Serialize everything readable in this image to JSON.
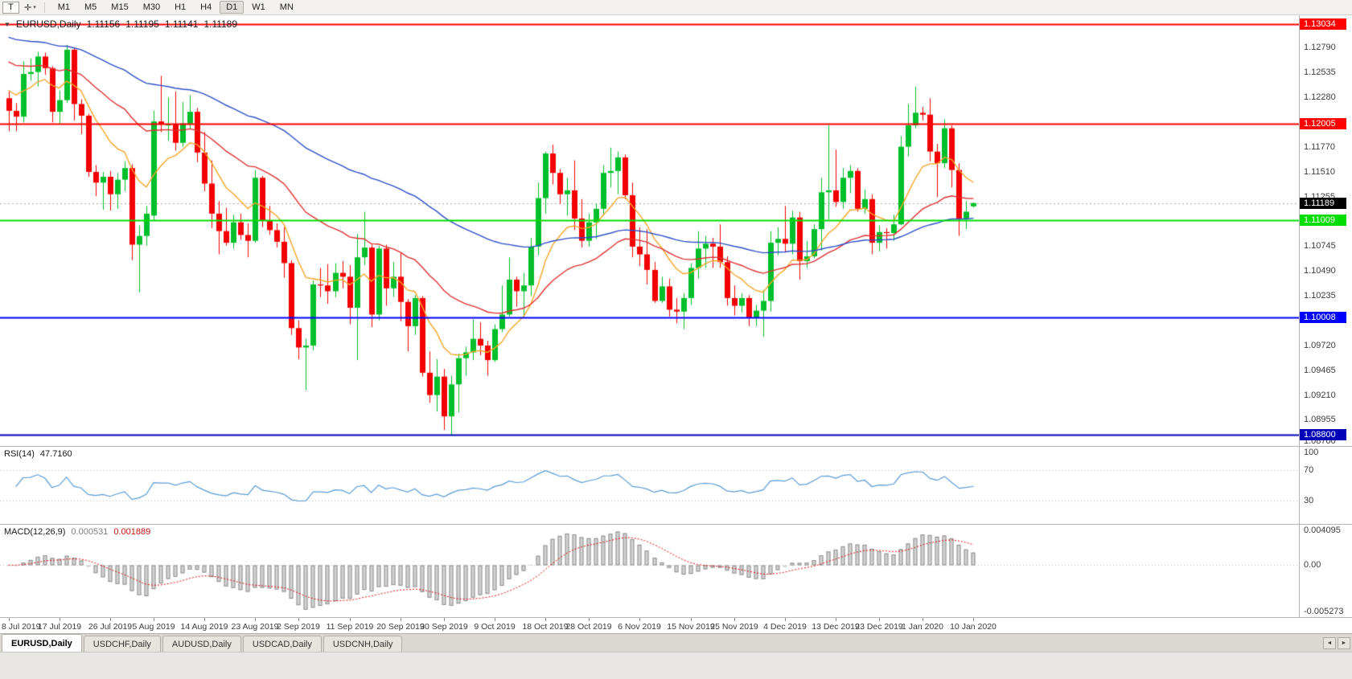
{
  "toolbar": {
    "tool_button_label": "T",
    "crosshair_icon": "✛",
    "dropdown_caret": "▾",
    "timeframes": [
      "M1",
      "M5",
      "M15",
      "M30",
      "H1",
      "H4",
      "D1",
      "W1",
      "MN"
    ],
    "active_timeframe": "D1"
  },
  "header": {
    "marker": "▼",
    "symbol": "EURUSD,Daily",
    "open": "1.11156",
    "high": "1.11195",
    "low": "1.11141",
    "close": "1.11189"
  },
  "chart_data": {
    "type": "candlestick",
    "symbol": "EURUSD",
    "timeframe": "Daily",
    "y_max": 1.13125,
    "y_min": 1.08685,
    "colors": {
      "up": "#00bf2a",
      "down": "#f40000"
    },
    "candles": [
      [
        1.1227,
        1.1234,
        1.1193,
        1.1214
      ],
      [
        1.1214,
        1.1222,
        1.1193,
        1.1208
      ],
      [
        1.1208,
        1.1265,
        1.1202,
        1.1252
      ],
      [
        1.1252,
        1.1268,
        1.1245,
        1.1254
      ],
      [
        1.1254,
        1.1275,
        1.1239,
        1.127
      ],
      [
        1.127,
        1.1274,
        1.1251,
        1.1258
      ],
      [
        1.1258,
        1.126,
        1.1202,
        1.1213
      ],
      [
        1.1213,
        1.1235,
        1.12,
        1.1225
      ],
      [
        1.1225,
        1.1282,
        1.1222,
        1.1277
      ],
      [
        1.1277,
        1.1279,
        1.1204,
        1.1221
      ],
      [
        1.1221,
        1.1226,
        1.119,
        1.1209
      ],
      [
        1.1209,
        1.1211,
        1.1146,
        1.1151
      ],
      [
        1.1151,
        1.1158,
        1.1126,
        1.114
      ],
      [
        1.114,
        1.1151,
        1.1112,
        1.1146
      ],
      [
        1.1146,
        1.1152,
        1.1111,
        1.1128
      ],
      [
        1.1128,
        1.115,
        1.1113,
        1.1143
      ],
      [
        1.1143,
        1.1162,
        1.1131,
        1.1155
      ],
      [
        1.1155,
        1.1159,
        1.106,
        1.1076
      ],
      [
        1.1076,
        1.1096,
        1.1027,
        1.1085
      ],
      [
        1.1085,
        1.1116,
        1.1075,
        1.1108
      ],
      [
        1.1106,
        1.1214,
        1.1101,
        1.1203
      ],
      [
        1.1203,
        1.125,
        1.1192,
        1.12
      ],
      [
        1.12,
        1.1228,
        1.1183,
        1.12
      ],
      [
        1.12,
        1.1234,
        1.1173,
        1.1181
      ],
      [
        1.1181,
        1.1223,
        1.1177,
        1.1201
      ],
      [
        1.1201,
        1.123,
        1.1195,
        1.1213
      ],
      [
        1.1213,
        1.1217,
        1.1161,
        1.1171
      ],
      [
        1.1171,
        1.1192,
        1.1131,
        1.1139
      ],
      [
        1.1139,
        1.1163,
        1.1093,
        1.1108
      ],
      [
        1.1108,
        1.1121,
        1.1066,
        1.109
      ],
      [
        1.109,
        1.1114,
        1.1075,
        1.1078
      ],
      [
        1.1078,
        1.1107,
        1.1072,
        1.1099
      ],
      [
        1.1099,
        1.1108,
        1.1081,
        1.1086
      ],
      [
        1.1086,
        1.1098,
        1.1063,
        1.108
      ],
      [
        1.108,
        1.1153,
        1.1078,
        1.1145
      ],
      [
        1.1145,
        1.1147,
        1.1094,
        1.1101
      ],
      [
        1.1101,
        1.1116,
        1.1086,
        1.1091
      ],
      [
        1.1091,
        1.1098,
        1.1073,
        1.1079
      ],
      [
        1.1079,
        1.1094,
        1.1042,
        1.1057
      ],
      [
        1.1057,
        1.106,
        1.0983,
        1.099
      ],
      [
        1.099,
        1.0998,
        1.0958,
        1.097
      ],
      [
        1.097,
        1.0979,
        1.0926,
        1.0972
      ],
      [
        1.0972,
        1.1039,
        1.0967,
        1.1035
      ],
      [
        1.1035,
        1.1052,
        1.1022,
        1.1034
      ],
      [
        1.1034,
        1.1056,
        1.1015,
        1.1028
      ],
      [
        1.1028,
        1.1057,
        1.1022,
        1.1047
      ],
      [
        1.1047,
        1.1059,
        1.1031,
        1.1043
      ],
      [
        1.1043,
        1.1055,
        1.0994,
        1.1011
      ],
      [
        1.1011,
        1.1087,
        1.0957,
        1.1063
      ],
      [
        1.1063,
        1.111,
        1.1055,
        1.1073
      ],
      [
        1.1073,
        1.1076,
        1.0991,
        1.1004
      ],
      [
        1.1004,
        1.1075,
        1.0998,
        1.1072
      ],
      [
        1.1072,
        1.1076,
        1.1013,
        1.1031
      ],
      [
        1.1031,
        1.1058,
        1.1022,
        1.1043
      ],
      [
        1.1043,
        1.1068,
        1.0997,
        1.1017
      ],
      [
        1.1017,
        1.102,
        1.0966,
        1.0992
      ],
      [
        1.0992,
        1.1024,
        1.0983,
        1.1021
      ],
      [
        1.1021,
        1.1023,
        1.094,
        1.0944
      ],
      [
        1.0944,
        1.0966,
        1.0913,
        1.0921
      ],
      [
        1.0921,
        1.0958,
        1.0904,
        1.094
      ],
      [
        1.094,
        1.0948,
        1.0885,
        1.0899
      ],
      [
        1.0899,
        1.0941,
        1.0879,
        1.0932
      ],
      [
        1.0932,
        1.0964,
        1.0903,
        1.0959
      ],
      [
        1.0959,
        1.0971,
        1.0941,
        1.0965
      ],
      [
        1.0965,
        1.0999,
        1.0957,
        1.0979
      ],
      [
        1.0979,
        1.0996,
        1.0962,
        1.0972
      ],
      [
        1.0972,
        1.0977,
        1.0941,
        1.0957
      ],
      [
        1.0957,
        1.0994,
        1.0955,
        1.0989
      ],
      [
        1.0989,
        1.1034,
        1.0986,
        1.1004
      ],
      [
        1.1004,
        1.1063,
        1.1002,
        1.104
      ],
      [
        1.104,
        1.1043,
        1.1012,
        1.1028
      ],
      [
        1.1028,
        1.1047,
        1.1001,
        1.1034
      ],
      [
        1.1034,
        1.1083,
        1.1023,
        1.1074
      ],
      [
        1.1074,
        1.114,
        1.1065,
        1.1124
      ],
      [
        1.1124,
        1.1172,
        1.1108,
        1.117
      ],
      [
        1.117,
        1.1179,
        1.1138,
        1.115
      ],
      [
        1.115,
        1.1154,
        1.1118,
        1.1128
      ],
      [
        1.1128,
        1.1145,
        1.1106,
        1.1132
      ],
      [
        1.1132,
        1.1163,
        1.1091,
        1.1103
      ],
      [
        1.1103,
        1.1123,
        1.1073,
        1.108
      ],
      [
        1.108,
        1.1108,
        1.1074,
        1.1099
      ],
      [
        1.1099,
        1.1118,
        1.1082,
        1.1113
      ],
      [
        1.1113,
        1.1158,
        1.1106,
        1.115
      ],
      [
        1.115,
        1.1176,
        1.1135,
        1.1152
      ],
      [
        1.1152,
        1.1172,
        1.1128,
        1.1166
      ],
      [
        1.1166,
        1.1169,
        1.1123,
        1.1127
      ],
      [
        1.1127,
        1.114,
        1.1063,
        1.1074
      ],
      [
        1.1074,
        1.1094,
        1.1054,
        1.1066
      ],
      [
        1.1066,
        1.1092,
        1.1035,
        1.105
      ],
      [
        1.105,
        1.1058,
        1.1016,
        1.1018
      ],
      [
        1.1018,
        1.1043,
        1.1016,
        1.1033
      ],
      [
        1.1033,
        1.1041,
        1.1002,
        1.1009
      ],
      [
        1.1009,
        1.1021,
        1.0995,
        1.1007
      ],
      [
        1.1007,
        1.1026,
        1.0989,
        1.1021
      ],
      [
        1.1021,
        1.1057,
        1.1014,
        1.1052
      ],
      [
        1.1052,
        1.109,
        1.1041,
        1.1072
      ],
      [
        1.1072,
        1.1085,
        1.1052,
        1.1077
      ],
      [
        1.1077,
        1.1083,
        1.1052,
        1.1074
      ],
      [
        1.1074,
        1.1097,
        1.1052,
        1.1058
      ],
      [
        1.1058,
        1.1064,
        1.1013,
        1.1021
      ],
      [
        1.1021,
        1.1034,
        1.1003,
        1.1013
      ],
      [
        1.1013,
        1.1026,
        1.1006,
        1.1021
      ],
      [
        1.1021,
        1.1024,
        1.0992,
        1.1001
      ],
      [
        1.1001,
        1.1014,
        1.0992,
        1.1008
      ],
      [
        1.1008,
        1.1029,
        1.0981,
        1.1018
      ],
      [
        1.1018,
        1.109,
        1.1007,
        1.1078
      ],
      [
        1.1078,
        1.1094,
        1.1065,
        1.1082
      ],
      [
        1.1082,
        1.1116,
        1.1068,
        1.1077
      ],
      [
        1.1077,
        1.1111,
        1.1066,
        1.1104
      ],
      [
        1.1104,
        1.111,
        1.104,
        1.1059
      ],
      [
        1.1059,
        1.108,
        1.1052,
        1.1064
      ],
      [
        1.1064,
        1.1097,
        1.1062,
        1.1092
      ],
      [
        1.1092,
        1.1145,
        1.107,
        1.113
      ],
      [
        1.113,
        1.1199,
        1.1102,
        1.1132
      ],
      [
        1.1132,
        1.1174,
        1.1115,
        1.112
      ],
      [
        1.112,
        1.1155,
        1.1113,
        1.1145
      ],
      [
        1.1145,
        1.1158,
        1.1129,
        1.1152
      ],
      [
        1.1152,
        1.1155,
        1.111,
        1.1113
      ],
      [
        1.1113,
        1.1133,
        1.1108,
        1.1123
      ],
      [
        1.1123,
        1.1128,
        1.1066,
        1.1078
      ],
      [
        1.1078,
        1.1096,
        1.1069,
        1.1089
      ],
      [
        1.1089,
        1.1093,
        1.1072,
        1.1088
      ],
      [
        1.1088,
        1.1107,
        1.108,
        1.1097
      ],
      [
        1.1097,
        1.1188,
        1.1096,
        1.1177
      ],
      [
        1.1177,
        1.1221,
        1.1167,
        1.1199
      ],
      [
        1.1199,
        1.1239,
        1.1196,
        1.1212
      ],
      [
        1.1212,
        1.1218,
        1.1204,
        1.121
      ],
      [
        1.121,
        1.1227,
        1.1162,
        1.1172
      ],
      [
        1.1172,
        1.118,
        1.1125,
        1.116
      ],
      [
        1.116,
        1.1205,
        1.1155,
        1.1196
      ],
      [
        1.1196,
        1.1199,
        1.1135,
        1.1153
      ],
      [
        1.1153,
        1.116,
        1.1085,
        1.1103
      ],
      [
        1.1103,
        1.1121,
        1.1092,
        1.111
      ],
      [
        1.11156,
        1.11195,
        1.11141,
        1.11189
      ]
    ],
    "tick_indices": [
      0,
      7,
      14,
      20,
      27,
      34,
      40,
      47,
      54,
      60,
      67,
      74,
      80,
      87,
      94,
      100,
      107,
      114,
      120,
      126,
      133
    ],
    "tick_labels": [
      "8 Jul 2019",
      "17 Jul 2019",
      "26 Jul 2019",
      "5 Aug 2019",
      "14 Aug 2019",
      "23 Aug 2019",
      "2 Sep 2019",
      "11 Sep 2019",
      "20 Sep 2019",
      "30 Sep 2019",
      "9 Oct 2019",
      "18 Oct 2019",
      "28 Oct 2019",
      "6 Nov 2019",
      "15 Nov 2019",
      "25 Nov 2019",
      "4 Dec 2019",
      "13 Dec 2019",
      "23 Dec 2019",
      "1 Jan 2020",
      "10 Jan 2020"
    ],
    "price_axis": [
      {
        "value": 1.1279,
        "label": "1.12790"
      },
      {
        "value": 1.12535,
        "label": "1.12535"
      },
      {
        "value": 1.1228,
        "label": "1.12280"
      },
      {
        "value": 1.1177,
        "label": "1.11770"
      },
      {
        "value": 1.1151,
        "label": "1.11510"
      },
      {
        "value": 1.11255,
        "label": "1.11255"
      },
      {
        "value": 1.10745,
        "label": "1.10745"
      },
      {
        "value": 1.1049,
        "label": "1.10490"
      },
      {
        "value": 1.10235,
        "label": "1.10235"
      },
      {
        "value": 1.0972,
        "label": "1.09720"
      },
      {
        "value": 1.09465,
        "label": "1.09465"
      },
      {
        "value": 1.0921,
        "label": "1.09210"
      },
      {
        "value": 1.08955,
        "label": "1.08955"
      },
      {
        "value": 1.087,
        "label": "1.08700"
      }
    ],
    "levels": [
      {
        "price": 1.13034,
        "label": "1.13034",
        "color": "#fe0000",
        "text_color": "#ffffff",
        "width": 2
      },
      {
        "price": 1.12005,
        "label": "1.12005",
        "color": "#fe0000",
        "text_color": "#ffffff",
        "width": 2
      },
      {
        "price": 1.11009,
        "label": "1.11009",
        "color": "#00dd00",
        "text_color": "#ffffff",
        "width": 2
      },
      {
        "price": 1.10008,
        "label": "1.10008",
        "color": "#0000ff",
        "text_color": "#ffffff",
        "width": 2
      },
      {
        "price": 1.088,
        "label": "1.08800",
        "color": "#0000b8",
        "text_color": "#ffffff",
        "width": 2
      }
    ],
    "current_price": {
      "price": 1.11189,
      "label": "1.11189",
      "color": "#000000",
      "text_color": "#ffffff"
    },
    "moving_averages": [
      {
        "name": "ma-fast",
        "period": 10,
        "seed": 1.124,
        "color": "#f4a62a"
      },
      {
        "name": "ma-mid",
        "period": 30,
        "seed": 1.1268,
        "color": "#e03030"
      },
      {
        "name": "ma-slow",
        "period": 70,
        "seed": 1.1292,
        "color": "#2d4fc8"
      }
    ],
    "rsi": {
      "label": "RSI(14)",
      "value": "47.7160",
      "color": "#5a9bd4",
      "scale": [
        0,
        100
      ],
      "guides": [
        30,
        70
      ],
      "axis": [
        {
          "value": 100,
          "label": "100"
        },
        {
          "value": 70,
          "label": "70"
        },
        {
          "value": 30,
          "label": "30"
        }
      ]
    },
    "macd": {
      "label": "MACD(12,26,9)",
      "value_main": "0.000531",
      "value_signal": "0.001889",
      "hist_color": "#d2d2d2",
      "hist_border": "#8f8f8f",
      "signal_color": "#e01010",
      "range": [
        -0.005273,
        0.004095
      ],
      "axis": [
        {
          "value": 0.004095,
          "label": "0.004095"
        },
        {
          "value": 0,
          "label": "0.00"
        },
        {
          "value": -0.005273,
          "label": "-0.005273"
        }
      ]
    }
  },
  "tabs": {
    "items": [
      {
        "label": "EURUSD,Daily",
        "active": true
      },
      {
        "label": "USDCHF,Daily",
        "active": false
      },
      {
        "label": "AUDUSD,Daily",
        "active": false
      },
      {
        "label": "USDCAD,Daily",
        "active": false
      },
      {
        "label": "USDCNH,Daily",
        "active": false
      }
    ],
    "scroll_left": "◄",
    "scroll_right": "►"
  }
}
